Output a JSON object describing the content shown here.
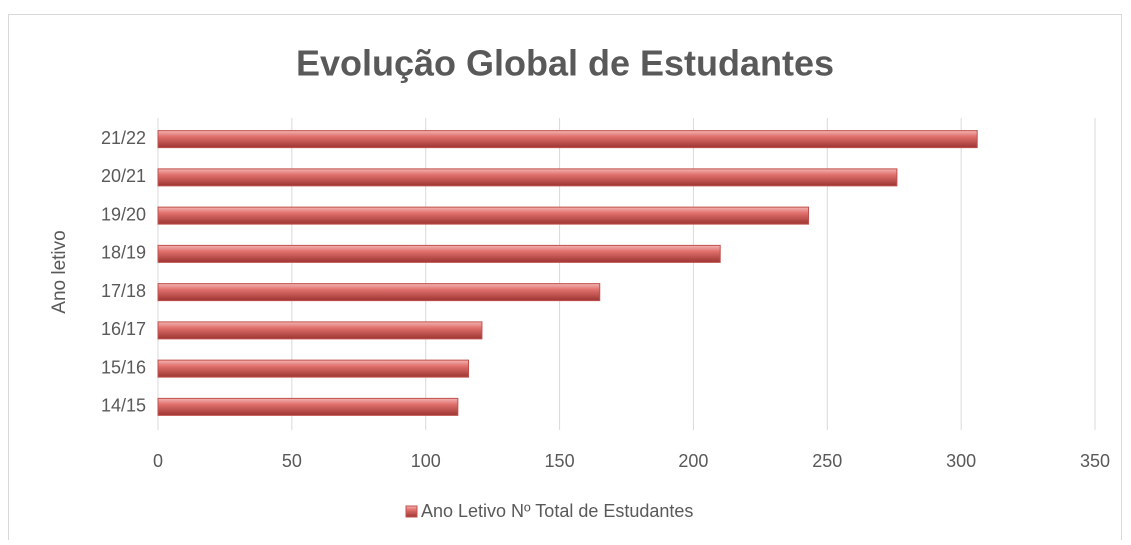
{
  "chart_data": {
    "type": "bar",
    "orientation": "horizontal",
    "title": "Evolução Global de Estudantes",
    "y_label": "Ano letivo",
    "categories": [
      "14/15",
      "15/16",
      "16/17",
      "17/18",
      "18/19",
      "19/20",
      "20/21",
      "21/22"
    ],
    "series": [
      {
        "name": "Ano Letivo Nº Total de Estudantes",
        "color": "#c0504d",
        "values": [
          112,
          116,
          121,
          165,
          210,
          243,
          276,
          306
        ]
      }
    ],
    "xlim": [
      0,
      350
    ],
    "xticks": [
      0,
      50,
      100,
      150,
      200,
      250,
      300,
      350
    ],
    "grid": true,
    "legend": "bottom"
  }
}
